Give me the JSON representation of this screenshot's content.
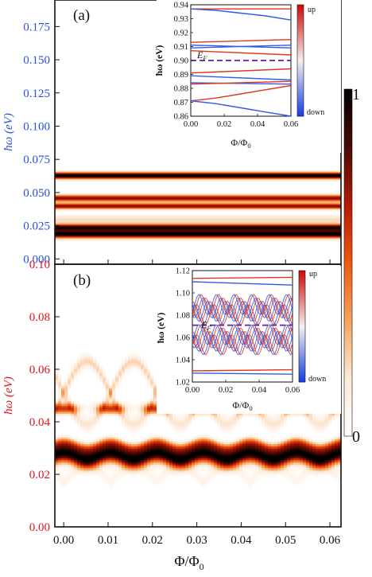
{
  "figure": {
    "colorbar": {
      "max_label": "1",
      "min_label": "0",
      "colors": [
        "#ffffff",
        "#fde9d8",
        "#f9a35e",
        "#ee5a12",
        "#b51a05",
        "#4a0a04",
        "#000000"
      ]
    },
    "shared_x": {
      "label": "Φ/Φ",
      "label_sub": "0",
      "ticks": [
        "0.00",
        "0.01",
        "0.02",
        "0.03",
        "0.04",
        "0.05",
        "0.06"
      ]
    }
  },
  "chart_data": [
    {
      "panel": "(a)",
      "type": "heatmap",
      "ylabel": "ħω (eV)",
      "ylabel_color": "#2a4fe0",
      "x_range": [
        -0.002,
        0.0625
      ],
      "y_range": [
        -0.004,
        0.195
      ],
      "yticks": [
        "0.000",
        "0.025",
        "0.050",
        "0.075",
        "0.100",
        "0.125",
        "0.150",
        "0.175"
      ],
      "ytick_values": [
        0,
        0.025,
        0.05,
        0.075,
        0.1,
        0.125,
        0.15,
        0.175
      ],
      "bands": [
        {
          "energy": 0.063,
          "intensity": 1.0,
          "width": 0.0025
        },
        {
          "energy": 0.046,
          "intensity": 0.75,
          "width": 0.0025
        },
        {
          "energy": 0.04,
          "intensity": 0.75,
          "width": 0.0022
        },
        {
          "energy": 0.03,
          "intensity": 0.2,
          "width": 0.003
        },
        {
          "energy": 0.019,
          "intensity": 1.0,
          "width": 0.003
        },
        {
          "energy": 0.024,
          "intensity": 0.9,
          "width": 0.0025
        }
      ],
      "inset": {
        "type": "line",
        "x_range": [
          0,
          0.06
        ],
        "y_range": [
          0.86,
          0.94
        ],
        "xticks": [
          "0.00",
          "0.02",
          "0.04",
          "0.06"
        ],
        "xtick_values": [
          0,
          0.02,
          0.04,
          0.06
        ],
        "yticks": [
          "0.86",
          "0.87",
          "0.88",
          "0.89",
          "0.90",
          "0.91",
          "0.92",
          "0.93",
          "0.94"
        ],
        "ytick_values": [
          0.86,
          0.87,
          0.88,
          0.89,
          0.9,
          0.91,
          0.92,
          0.93,
          0.94
        ],
        "ylabel": "ħω (eV)",
        "xlabel": "Φ/Φ",
        "xlabel_sub": "0",
        "fermi_label": "E",
        "fermi_sub": "F",
        "fermi_energy": 0.9,
        "colorbar_top": "up",
        "colorbar_bottom": "down",
        "series": [
          {
            "spin": "up",
            "x": [
              0,
              0.06
            ],
            "y": [
              0.937,
              0.937
            ]
          },
          {
            "spin": "down",
            "x": [
              0,
              0.015,
              0.03,
              0.045,
              0.06
            ],
            "y": [
              0.937,
              0.936,
              0.934,
              0.932,
              0.929
            ]
          },
          {
            "spin": "up",
            "x": [
              0,
              0.06
            ],
            "y": [
              0.913,
              0.915
            ]
          },
          {
            "spin": "down",
            "x": [
              0,
              0.06
            ],
            "y": [
              0.911,
              0.909
            ]
          },
          {
            "spin": "down",
            "x": [
              0,
              0.06
            ],
            "y": [
              0.909,
              0.911
            ]
          },
          {
            "spin": "up",
            "x": [
              0,
              0.06
            ],
            "y": [
              0.907,
              0.904
            ]
          },
          {
            "spin": "up",
            "x": [
              0,
              0.06
            ],
            "y": [
              0.891,
              0.894
            ]
          },
          {
            "spin": "down",
            "x": [
              0,
              0.06
            ],
            "y": [
              0.889,
              0.886
            ]
          },
          {
            "spin": "down",
            "x": [
              0,
              0.06
            ],
            "y": [
              0.884,
              0.883
            ]
          },
          {
            "spin": "up",
            "x": [
              0,
              0.06
            ],
            "y": [
              0.883,
              0.885
            ]
          },
          {
            "spin": "up",
            "x": [
              0,
              0.015,
              0.03,
              0.045,
              0.06
            ],
            "y": [
              0.871,
              0.873,
              0.876,
              0.879,
              0.882
            ]
          },
          {
            "spin": "down",
            "x": [
              0,
              0.015,
              0.03,
              0.045,
              0.06
            ],
            "y": [
              0.871,
              0.869,
              0.866,
              0.863,
              0.86
            ]
          }
        ]
      }
    },
    {
      "panel": "(b)",
      "type": "heatmap",
      "ylabel": "ħω (eV)",
      "ylabel_color": "#e0141e",
      "x_range": [
        -0.002,
        0.0625
      ],
      "y_range": [
        0,
        0.1
      ],
      "yticks": [
        "0.00",
        "0.02",
        "0.04",
        "0.06",
        "0.08",
        "0.10"
      ],
      "ytick_values": [
        0,
        0.02,
        0.04,
        0.06,
        0.08,
        0.1
      ],
      "bands": [
        {
          "energy": 0.027,
          "intensity": 1.0,
          "width": 0.0035,
          "osc_amp": 0.0012
        },
        {
          "energy": 0.045,
          "intensity": 0.6,
          "width": 0.002,
          "osc_amp": 0.0
        }
      ],
      "inset": {
        "type": "line",
        "x_range": [
          0,
          0.06
        ],
        "y_range": [
          1.02,
          1.12
        ],
        "xticks": [
          "0.00",
          "0.02",
          "0.04",
          "0.06"
        ],
        "xtick_values": [
          0,
          0.02,
          0.04,
          0.06
        ],
        "yticks": [
          "1.02",
          "1.04",
          "1.06",
          "1.08",
          "1.10",
          "1.12"
        ],
        "ytick_values": [
          1.02,
          1.04,
          1.06,
          1.08,
          1.1,
          1.12
        ],
        "ylabel": "ħω (eV)",
        "xlabel": "Φ/Φ",
        "xlabel_sub": "0",
        "fermi_label": "E",
        "fermi_sub": "F",
        "fermi_energy": 1.071,
        "colorbar_top": "up",
        "colorbar_bottom": "down",
        "series": [
          {
            "spin": "up",
            "x": [
              0,
              0.06
            ],
            "y": [
              1.113,
              1.114
            ]
          },
          {
            "spin": "down",
            "x": [
              0,
              0.06
            ],
            "y": [
              1.11,
              1.107
            ]
          },
          {
            "spin": "up",
            "x": [
              0,
              0.06
            ],
            "y": [
              1.03,
              1.031
            ]
          },
          {
            "spin": "down",
            "x": [
              0,
              0.06
            ],
            "y": [
              1.028,
              1.027
            ]
          }
        ]
      }
    }
  ]
}
